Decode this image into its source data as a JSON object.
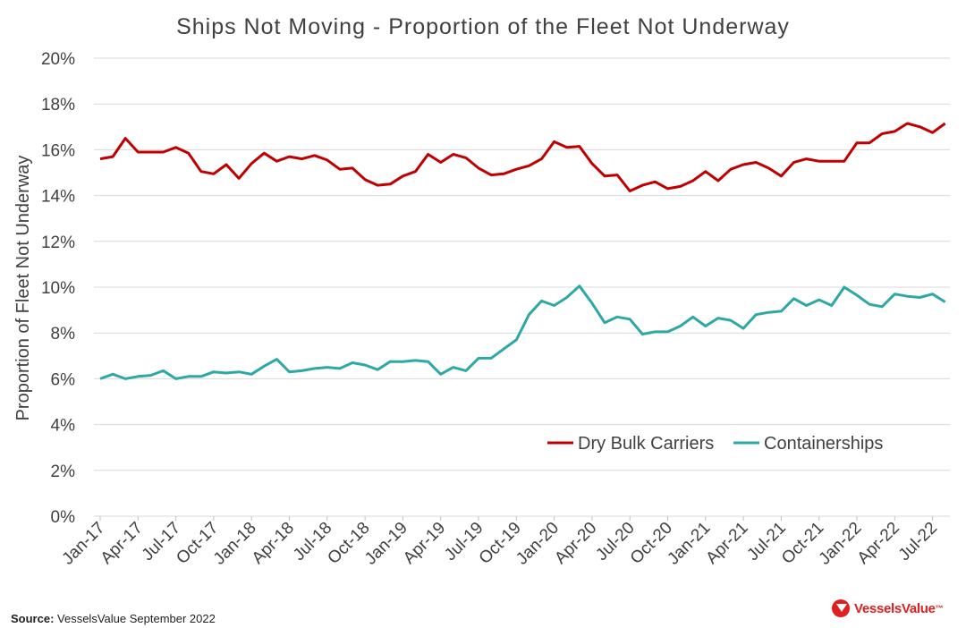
{
  "chart_data": {
    "type": "line",
    "title": "Ships Not Moving - Proportion of the Fleet Not Underway",
    "ylabel": "Proportion of Fleet Not Underway",
    "ylim": [
      0,
      20
    ],
    "yticks": [
      "0%",
      "2%",
      "4%",
      "6%",
      "8%",
      "10%",
      "12%",
      "14%",
      "16%",
      "18%",
      "20%"
    ],
    "grid": true,
    "legend_position": "bottom-right",
    "x_tick_labels": [
      "Jan-17",
      "Apr-17",
      "Jul-17",
      "Oct-17",
      "Jan-18",
      "Apr-18",
      "Jul-18",
      "Oct-18",
      "Jan-19",
      "Apr-19",
      "Jul-19",
      "Oct-19",
      "Jan-20",
      "Apr-20",
      "Jul-20",
      "Oct-20",
      "Jan-21",
      "Apr-21",
      "Jul-21",
      "Oct-21",
      "Jan-22",
      "Apr-22",
      "Jul-22"
    ],
    "x": [
      "Jan-17",
      "Feb-17",
      "Mar-17",
      "Apr-17",
      "May-17",
      "Jun-17",
      "Jul-17",
      "Aug-17",
      "Sep-17",
      "Oct-17",
      "Nov-17",
      "Dec-17",
      "Jan-18",
      "Feb-18",
      "Mar-18",
      "Apr-18",
      "May-18",
      "Jun-18",
      "Jul-18",
      "Aug-18",
      "Sep-18",
      "Oct-18",
      "Nov-18",
      "Dec-18",
      "Jan-19",
      "Feb-19",
      "Mar-19",
      "Apr-19",
      "May-19",
      "Jun-19",
      "Jul-19",
      "Aug-19",
      "Sep-19",
      "Oct-19",
      "Nov-19",
      "Dec-19",
      "Jan-20",
      "Feb-20",
      "Mar-20",
      "Apr-20",
      "May-20",
      "Jun-20",
      "Jul-20",
      "Aug-20",
      "Sep-20",
      "Oct-20",
      "Nov-20",
      "Dec-20",
      "Jan-21",
      "Feb-21",
      "Mar-21",
      "Apr-21",
      "May-21",
      "Jun-21",
      "Jul-21",
      "Aug-21",
      "Sep-21",
      "Oct-21",
      "Nov-21",
      "Dec-21",
      "Jan-22",
      "Feb-22",
      "Mar-22",
      "Apr-22",
      "May-22",
      "Jun-22",
      "Jul-22",
      "Aug-22"
    ],
    "series": [
      {
        "name": "Dry Bulk Carriers",
        "color": "#c00000",
        "values": [
          15.6,
          15.7,
          16.5,
          15.9,
          15.9,
          15.9,
          16.1,
          15.85,
          15.05,
          14.95,
          15.35,
          14.75,
          15.4,
          15.85,
          15.5,
          15.7,
          15.6,
          15.75,
          15.55,
          15.15,
          15.2,
          14.7,
          14.45,
          14.5,
          14.85,
          15.05,
          15.8,
          15.45,
          15.8,
          15.65,
          15.2,
          14.9,
          14.95,
          15.15,
          15.3,
          15.6,
          16.35,
          16.1,
          16.15,
          15.4,
          14.85,
          14.9,
          14.2,
          14.45,
          14.6,
          14.3,
          14.4,
          14.65,
          15.05,
          14.65,
          15.15,
          15.35,
          15.45,
          15.2,
          14.85,
          15.45,
          15.6,
          15.5,
          15.5,
          15.5,
          16.3,
          16.3,
          16.7,
          16.8,
          17.15,
          17.0,
          16.75,
          17.15
        ]
      },
      {
        "name": "Containerships",
        "color": "#2ea8a4",
        "values": [
          6.0,
          6.2,
          6.0,
          6.1,
          6.15,
          6.35,
          6.0,
          6.1,
          6.1,
          6.3,
          6.25,
          6.3,
          6.2,
          6.55,
          6.85,
          6.3,
          6.35,
          6.45,
          6.5,
          6.45,
          6.7,
          6.6,
          6.4,
          6.75,
          6.75,
          6.8,
          6.75,
          6.2,
          6.5,
          6.35,
          6.9,
          6.9,
          7.3,
          7.7,
          8.8,
          9.4,
          9.2,
          9.55,
          10.05,
          9.3,
          8.45,
          8.7,
          8.6,
          7.95,
          8.05,
          8.05,
          8.3,
          8.7,
          8.3,
          8.65,
          8.55,
          8.2,
          8.8,
          8.9,
          8.95,
          9.5,
          9.2,
          9.45,
          9.2,
          10.0,
          9.65,
          9.25,
          9.15,
          9.7,
          9.6,
          9.55,
          9.7,
          9.35
        ]
      }
    ]
  },
  "legend": {
    "dry_bulk": "Dry Bulk Carriers",
    "containerships": "Containerships"
  },
  "footer": {
    "source_label": "Source:",
    "source_text": " VesselsValue September 2022",
    "logo_text": "VesselsValue",
    "logo_tm": "™"
  },
  "colors": {
    "dry_bulk": "#c00000",
    "containerships": "#2ea8a4",
    "logo": "#e0201f"
  }
}
